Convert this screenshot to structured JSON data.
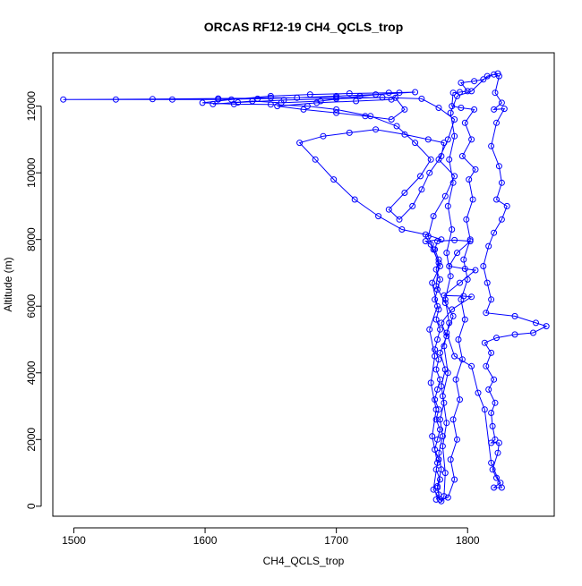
{
  "chart_data": {
    "type": "scatter",
    "title": "ORCAS RF12-19 CH4_QCLS_trop",
    "xlabel": "CH4_QCLS_trop",
    "ylabel": "Altitude (m)",
    "xlim": [
      1484,
      1866
    ],
    "ylim": [
      -300,
      13600
    ],
    "x_ticks": [
      1500,
      1600,
      1700,
      1800
    ],
    "y_ticks": [
      0,
      2000,
      4000,
      6000,
      8000,
      10000,
      12000
    ],
    "grid": false,
    "legend": "none",
    "marker": "open-circle",
    "line": true,
    "series_color": "#0000ff",
    "series": [
      {
        "points": [
          [
            1776,
            200
          ],
          [
            1778,
            350
          ],
          [
            1777,
            550
          ],
          [
            1779,
            800
          ],
          [
            1776,
            1100
          ],
          [
            1778,
            1400
          ],
          [
            1775,
            1700
          ],
          [
            1777,
            2000
          ],
          [
            1779,
            2300
          ],
          [
            1776,
            2600
          ],
          [
            1778,
            2900
          ],
          [
            1775,
            3200
          ],
          [
            1777,
            3500
          ],
          [
            1779,
            3800
          ],
          [
            1776,
            4100
          ],
          [
            1778,
            4400
          ],
          [
            1775,
            4700
          ],
          [
            1777,
            5000
          ],
          [
            1779,
            5300
          ],
          [
            1776,
            5600
          ],
          [
            1778,
            5900
          ],
          [
            1775,
            6200
          ],
          [
            1777,
            6500
          ],
          [
            1779,
            6800
          ],
          [
            1776,
            7100
          ],
          [
            1778,
            7400
          ],
          [
            1775,
            7700
          ],
          [
            1777,
            7950
          ],
          [
            1790,
            7980
          ],
          [
            1802,
            7950
          ],
          [
            1792,
            7600
          ],
          [
            1786,
            7200
          ],
          [
            1798,
            7120
          ],
          [
            1806,
            7080
          ],
          [
            1794,
            6700
          ],
          [
            1782,
            6320
          ],
          [
            1797,
            6300
          ],
          [
            1803,
            6280
          ],
          [
            1788,
            5900
          ],
          [
            1780,
            5500
          ],
          [
            1784,
            5100
          ],
          [
            1779,
            4600
          ],
          [
            1783,
            4100
          ],
          [
            1780,
            3600
          ],
          [
            1782,
            3100
          ],
          [
            1779,
            2600
          ],
          [
            1781,
            2100
          ],
          [
            1778,
            1600
          ],
          [
            1780,
            1100
          ],
          [
            1777,
            600
          ],
          [
            1779,
            200
          ],
          [
            1785,
            260
          ],
          [
            1790,
            800
          ],
          [
            1787,
            1400
          ],
          [
            1792,
            2000
          ],
          [
            1789,
            2600
          ],
          [
            1794,
            3200
          ],
          [
            1791,
            3800
          ],
          [
            1796,
            4400
          ],
          [
            1793,
            5000
          ],
          [
            1798,
            5600
          ],
          [
            1795,
            6200
          ],
          [
            1800,
            6800
          ],
          [
            1797,
            7400
          ],
          [
            1802,
            8000
          ],
          [
            1799,
            8600
          ],
          [
            1804,
            9200
          ],
          [
            1801,
            9800
          ],
          [
            1806,
            10100
          ],
          [
            1796,
            10500
          ],
          [
            1803,
            11000
          ],
          [
            1798,
            11500
          ],
          [
            1805,
            11900
          ],
          [
            1795,
            11950
          ],
          [
            1788,
            12000
          ],
          [
            1789,
            12400
          ],
          [
            1794,
            12420
          ],
          [
            1800,
            12450
          ],
          [
            1795,
            12700
          ],
          [
            1805,
            12750
          ],
          [
            1812,
            12800
          ],
          [
            1820,
            12950
          ],
          [
            1824,
            12900
          ],
          [
            1821,
            12400
          ],
          [
            1826,
            12100
          ],
          [
            1820,
            11900
          ],
          [
            1828,
            11920
          ],
          [
            1822,
            11500
          ],
          [
            1818,
            10800
          ],
          [
            1824,
            10200
          ],
          [
            1826,
            9700
          ],
          [
            1822,
            9200
          ],
          [
            1830,
            9000
          ],
          [
            1826,
            8600
          ],
          [
            1820,
            8200
          ],
          [
            1816,
            7800
          ],
          [
            1812,
            7200
          ],
          [
            1815,
            6700
          ],
          [
            1818,
            6200
          ],
          [
            1814,
            5800
          ],
          [
            1836,
            5700
          ],
          [
            1852,
            5500
          ],
          [
            1860,
            5400
          ],
          [
            1850,
            5200
          ],
          [
            1836,
            5150
          ],
          [
            1822,
            5050
          ],
          [
            1813,
            4900
          ],
          [
            1818,
            4600
          ],
          [
            1814,
            4200
          ],
          [
            1820,
            3800
          ],
          [
            1816,
            3500
          ],
          [
            1821,
            3100
          ],
          [
            1818,
            2800
          ],
          [
            1819,
            2400
          ],
          [
            1821,
            2000
          ],
          [
            1818,
            1900
          ],
          [
            1824,
            1900
          ],
          [
            1823,
            1600
          ],
          [
            1819,
            1100
          ],
          [
            1822,
            850
          ],
          [
            1825,
            700
          ],
          [
            1820,
            560
          ],
          [
            1826,
            560
          ],
          [
            1818,
            1300
          ],
          [
            1813,
            2900
          ],
          [
            1808,
            3400
          ],
          [
            1803,
            4200
          ],
          [
            1790,
            4500
          ],
          [
            1784,
            5200
          ],
          [
            1789,
            5700
          ],
          [
            1783,
            6100
          ],
          [
            1776,
            6600
          ],
          [
            1778,
            7300
          ],
          [
            1772,
            7850
          ],
          [
            1768,
            7950
          ],
          [
            1780,
            8000
          ],
          [
            1768,
            8150
          ],
          [
            1750,
            8300
          ],
          [
            1732,
            8700
          ],
          [
            1714,
            9200
          ],
          [
            1698,
            9800
          ],
          [
            1684,
            10400
          ],
          [
            1672,
            10900
          ],
          [
            1690,
            11100
          ],
          [
            1710,
            11200
          ],
          [
            1730,
            11300
          ],
          [
            1752,
            11150
          ],
          [
            1770,
            11000
          ],
          [
            1782,
            10900
          ],
          [
            1780,
            10500
          ],
          [
            1771,
            10000
          ],
          [
            1765,
            9500
          ],
          [
            1758,
            9000
          ],
          [
            1748,
            8600
          ],
          [
            1740,
            8900
          ],
          [
            1752,
            9400
          ],
          [
            1764,
            9900
          ],
          [
            1772,
            10400
          ],
          [
            1760,
            10900
          ],
          [
            1746,
            11400
          ],
          [
            1726,
            11700
          ],
          [
            1700,
            11900
          ],
          [
            1678,
            12000
          ],
          [
            1650,
            12050
          ],
          [
            1622,
            12060
          ],
          [
            1598,
            12100
          ],
          [
            1620,
            12200
          ],
          [
            1650,
            12300
          ],
          [
            1680,
            12350
          ],
          [
            1710,
            12380
          ],
          [
            1740,
            12400
          ],
          [
            1760,
            12420
          ],
          [
            1730,
            12350
          ],
          [
            1700,
            12300
          ],
          [
            1670,
            12250
          ],
          [
            1640,
            12220
          ],
          [
            1610,
            12200
          ],
          [
            1575,
            12200
          ],
          [
            1532,
            12200
          ],
          [
            1492,
            12200
          ],
          [
            1560,
            12210
          ],
          [
            1610,
            12230
          ],
          [
            1650,
            12250
          ],
          [
            1700,
            12260
          ],
          [
            1745,
            12250
          ],
          [
            1752,
            11900
          ],
          [
            1742,
            11600
          ],
          [
            1722,
            11700
          ],
          [
            1700,
            11800
          ],
          [
            1675,
            11900
          ],
          [
            1655,
            12000
          ],
          [
            1685,
            12100
          ],
          [
            1715,
            12150
          ],
          [
            1742,
            12200
          ],
          [
            1748,
            12400
          ],
          [
            1718,
            12300
          ],
          [
            1688,
            12150
          ],
          [
            1658,
            12100
          ],
          [
            1636,
            12150
          ],
          [
            1606,
            12060
          ],
          [
            1625,
            12110
          ],
          [
            1660,
            12180
          ],
          [
            1700,
            12220
          ],
          [
            1735,
            12260
          ],
          [
            1765,
            12220
          ],
          [
            1778,
            11950
          ],
          [
            1790,
            11600
          ],
          [
            1785,
            11000
          ],
          [
            1778,
            10400
          ],
          [
            1790,
            9900
          ],
          [
            1783,
            9300
          ],
          [
            1774,
            8700
          ],
          [
            1770,
            8100
          ],
          [
            1774,
            7700
          ],
          [
            1779,
            7200
          ],
          [
            1773,
            6700
          ],
          [
            1777,
            6000
          ],
          [
            1771,
            5300
          ],
          [
            1775,
            4500
          ],
          [
            1772,
            3700
          ],
          [
            1776,
            2900
          ],
          [
            1773,
            2100
          ],
          [
            1777,
            1300
          ],
          [
            1774,
            500
          ],
          [
            1780,
            150
          ],
          [
            1782,
            300
          ],
          [
            1783,
            1000
          ],
          [
            1781,
            1800
          ],
          [
            1784,
            2500
          ],
          [
            1781,
            3300
          ],
          [
            1785,
            4000
          ],
          [
            1782,
            4800
          ],
          [
            1786,
            5500
          ],
          [
            1783,
            6200
          ],
          [
            1787,
            6900
          ],
          [
            1784,
            7600
          ],
          [
            1788,
            8300
          ],
          [
            1785,
            9000
          ],
          [
            1789,
            9700
          ],
          [
            1786,
            10400
          ],
          [
            1790,
            11100
          ],
          [
            1787,
            11800
          ],
          [
            1792,
            12300
          ],
          [
            1803,
            12450
          ],
          [
            1815,
            12900
          ],
          [
            1823,
            12980
          ]
        ]
      }
    ]
  }
}
